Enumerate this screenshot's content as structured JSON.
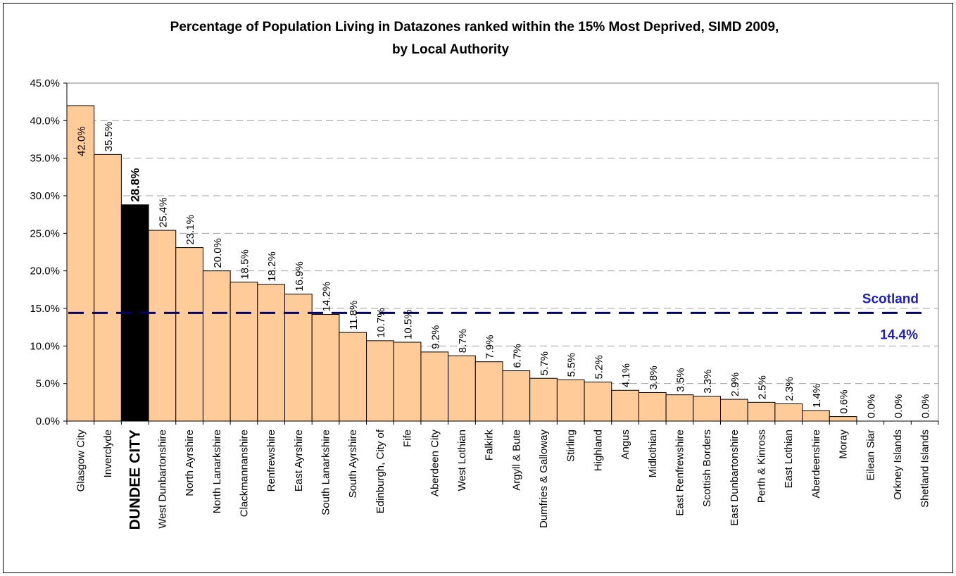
{
  "chart_data": {
    "type": "bar",
    "title": "Percentage of  Population Living in Datazones ranked within the 15% Most Deprived, SIMD 2009,",
    "subtitle": "by Local Authority",
    "xlabel": "",
    "ylabel": "",
    "ylim": [
      0,
      45
    ],
    "y_ticks": [
      "0.0%",
      "5.0%",
      "10.0%",
      "15.0%",
      "20.0%",
      "25.0%",
      "30.0%",
      "35.0%",
      "40.0%",
      "45.0%"
    ],
    "grid": true,
    "categories": [
      "Glasgow City",
      "Inverclyde",
      "DUNDEE CITY",
      "West Dunbartonshire",
      "North Ayrshire",
      "North Lanarkshire",
      "Clackmannanshire",
      "Renfrewshire",
      "East Ayrshire",
      "South Lanarkshire",
      "South Ayrshire",
      "Edinburgh, City of",
      "Fife",
      "Aberdeen City",
      "West Lothian",
      "Falkirk",
      "Argyll & Bute",
      "Dumfries & Galloway",
      "Stirling",
      "Highland",
      "Angus",
      "Midlothian",
      "East Renfrewshire",
      "Scottish Borders",
      "East Dunbartonshire",
      "Perth & Kinross",
      "East Lothian",
      "Aberdeenshire",
      "Moray",
      "Eilean Siar",
      "Orkney Islands",
      "Shetland Islands"
    ],
    "values": [
      42.0,
      35.5,
      28.8,
      25.4,
      23.1,
      20.0,
      18.5,
      18.2,
      16.9,
      14.2,
      11.8,
      10.7,
      10.5,
      9.2,
      8.7,
      7.9,
      6.7,
      5.7,
      5.5,
      5.2,
      4.1,
      3.8,
      3.5,
      3.3,
      2.9,
      2.5,
      2.3,
      1.4,
      0.6,
      0.0,
      0.0,
      0.0
    ],
    "data_labels": [
      "42.0%",
      "35.5%",
      "28.8%",
      "25.4%",
      "23.1%",
      "20.0%",
      "18.5%",
      "18.2%",
      "16.9%",
      "14.2%",
      "11.8%",
      "10.7%",
      "10.5%",
      "9.2%",
      "8.7%",
      "7.9%",
      "6.7%",
      "5.7%",
      "5.5%",
      "5.2%",
      "4.1%",
      "3.8%",
      "3.5%",
      "3.3%",
      "2.9%",
      "2.5%",
      "2.3%",
      "1.4%",
      "0.6%",
      "0.0%",
      "0.0%",
      "0.0%"
    ],
    "highlight_index": 2,
    "colors": {
      "bar": "#FFCC99",
      "highlight": "#000000",
      "reference_line": "#000066",
      "reference_label": "#1F1FBF",
      "gridline": "#A0A0A0"
    },
    "reference_line": {
      "value": 14.4,
      "label": "Scotland",
      "value_label": "14.4%"
    }
  }
}
